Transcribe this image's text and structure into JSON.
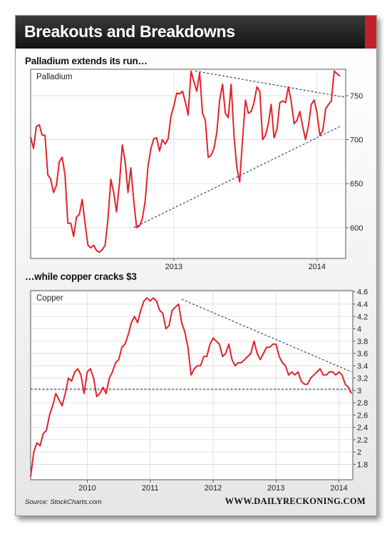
{
  "header": {
    "title": "Breakouts and Breakdowns"
  },
  "subtitles": {
    "top": "Palladium extends its run…",
    "bottom": "…while copper cracks $3"
  },
  "footer": {
    "source": "Source: StockCharts.com",
    "site": "WWW.DAILYRECKONING.COM"
  },
  "colors": {
    "series": "#e2232a",
    "trendline": "#1f3b73",
    "title_bar": "#1a1a1a",
    "accent": "#c2202a"
  },
  "chart_data": [
    {
      "type": "line",
      "title": "Palladium",
      "x_ticks": [
        {
          "label": "2013",
          "x": 2013.0
        },
        {
          "label": "2014",
          "x": 2014.0
        }
      ],
      "xlim": [
        2012.0,
        2014.2
      ],
      "y_ticks": [
        600,
        650,
        700,
        750
      ],
      "ylim": [
        565,
        780
      ],
      "grid": true,
      "axis_side": "right",
      "series": [
        {
          "x": [
            2012.0,
            2012.02,
            2012.04,
            2012.06,
            2012.08,
            2012.1,
            2012.12,
            2012.14,
            2012.16,
            2012.18,
            2012.2,
            2012.22,
            2012.24,
            2012.26,
            2012.28,
            2012.3,
            2012.32,
            2012.34,
            2012.36,
            2012.38,
            2012.4,
            2012.42,
            2012.44,
            2012.46,
            2012.48,
            2012.5,
            2012.52,
            2012.54,
            2012.56,
            2012.58,
            2012.6,
            2012.62,
            2012.64,
            2012.66,
            2012.68,
            2012.7,
            2012.72,
            2012.74,
            2012.76,
            2012.78,
            2012.8,
            2012.82,
            2012.84,
            2012.86,
            2012.88,
            2012.9,
            2012.92,
            2012.94,
            2012.96,
            2012.98,
            2013.0,
            2013.02,
            2013.04,
            2013.06,
            2013.08,
            2013.1,
            2013.12,
            2013.14,
            2013.16,
            2013.18,
            2013.2,
            2013.22,
            2013.24,
            2013.26,
            2013.28,
            2013.3,
            2013.32,
            2013.34,
            2013.36,
            2013.38,
            2013.4,
            2013.42,
            2013.44,
            2013.46,
            2013.48,
            2013.5,
            2013.52,
            2013.54,
            2013.56,
            2013.58,
            2013.6,
            2013.62,
            2013.64,
            2013.66,
            2013.68,
            2013.7,
            2013.72,
            2013.74,
            2013.76,
            2013.78,
            2013.8,
            2013.82,
            2013.84,
            2013.86,
            2013.88,
            2013.9,
            2013.92,
            2013.94,
            2013.96,
            2013.98,
            2014.0,
            2014.02,
            2014.04,
            2014.06,
            2014.08,
            2014.1,
            2014.12,
            2014.14,
            2014.16
          ],
          "values": [
            703,
            690,
            715,
            717,
            705,
            705,
            660,
            655,
            640,
            648,
            675,
            680,
            660,
            605,
            605,
            590,
            612,
            615,
            632,
            605,
            580,
            577,
            580,
            574,
            572,
            575,
            580,
            610,
            655,
            640,
            618,
            650,
            694,
            675,
            640,
            668,
            630,
            600,
            602,
            610,
            630,
            670,
            690,
            701,
            702,
            687,
            700,
            695,
            701,
            727,
            738,
            753,
            752,
            755,
            743,
            728,
            778,
            766,
            755,
            776,
            730,
            722,
            680,
            682,
            690,
            708,
            745,
            763,
            730,
            725,
            763,
            705,
            668,
            652,
            700,
            745,
            730,
            732,
            742,
            760,
            755,
            700,
            705,
            718,
            740,
            702,
            712,
            742,
            744,
            742,
            760,
            743,
            718,
            722,
            732,
            715,
            700,
            716,
            740,
            745,
            730,
            705,
            710,
            735,
            740,
            744,
            778,
            775,
            772
          ]
        }
      ],
      "trendlines": [
        {
          "x": [
            2013.15,
            2014.2
          ],
          "y": [
            778,
            748
          ]
        },
        {
          "x": [
            2012.72,
            2014.16
          ],
          "y": [
            600,
            715
          ]
        }
      ]
    },
    {
      "type": "line",
      "title": "Copper",
      "x_ticks": [
        {
          "label": "2010",
          "x": 2010.0
        },
        {
          "label": "2011",
          "x": 2011.0
        },
        {
          "label": "2012",
          "x": 2012.0
        },
        {
          "label": "2013",
          "x": 2013.0
        },
        {
          "label": "2014",
          "x": 2014.0
        }
      ],
      "xlim": [
        2009.1,
        2014.22
      ],
      "y_ticks": [
        1.8,
        2.0,
        2.2,
        2.4,
        2.6,
        2.8,
        3.0,
        3.2,
        3.4,
        3.6,
        3.8,
        4.0,
        4.2,
        4.4,
        4.6
      ],
      "ylim": [
        1.55,
        4.62
      ],
      "grid": true,
      "axis_side": "right",
      "series": [
        {
          "x": [
            2009.1,
            2009.15,
            2009.2,
            2009.25,
            2009.3,
            2009.35,
            2009.4,
            2009.45,
            2009.5,
            2009.55,
            2009.6,
            2009.65,
            2009.7,
            2009.75,
            2009.8,
            2009.85,
            2009.9,
            2009.95,
            2010.0,
            2010.05,
            2010.1,
            2010.15,
            2010.2,
            2010.25,
            2010.3,
            2010.35,
            2010.4,
            2010.45,
            2010.5,
            2010.55,
            2010.6,
            2010.65,
            2010.7,
            2010.75,
            2010.8,
            2010.85,
            2010.9,
            2010.95,
            2011.0,
            2011.05,
            2011.1,
            2011.15,
            2011.2,
            2011.25,
            2011.3,
            2011.35,
            2011.4,
            2011.45,
            2011.5,
            2011.55,
            2011.6,
            2011.65,
            2011.7,
            2011.75,
            2011.8,
            2011.85,
            2011.9,
            2011.95,
            2012.0,
            2012.05,
            2012.1,
            2012.15,
            2012.2,
            2012.25,
            2012.3,
            2012.35,
            2012.4,
            2012.45,
            2012.5,
            2012.55,
            2012.6,
            2012.65,
            2012.7,
            2012.75,
            2012.8,
            2012.85,
            2012.9,
            2012.95,
            2013.0,
            2013.05,
            2013.1,
            2013.15,
            2013.2,
            2013.25,
            2013.3,
            2013.35,
            2013.4,
            2013.45,
            2013.5,
            2013.55,
            2013.6,
            2013.65,
            2013.7,
            2013.75,
            2013.8,
            2013.85,
            2013.9,
            2013.95,
            2014.0,
            2014.05,
            2014.1,
            2014.15,
            2014.2
          ],
          "values": [
            1.6,
            2.0,
            2.15,
            2.1,
            2.3,
            2.35,
            2.6,
            2.75,
            2.95,
            2.85,
            2.75,
            2.95,
            3.2,
            3.15,
            3.3,
            3.35,
            3.25,
            2.95,
            3.3,
            3.35,
            3.2,
            2.9,
            2.95,
            3.05,
            2.95,
            3.2,
            3.3,
            3.45,
            3.5,
            3.7,
            3.75,
            3.9,
            4.1,
            4.2,
            4.1,
            4.3,
            4.45,
            4.5,
            4.45,
            4.5,
            4.45,
            4.3,
            4.25,
            4.0,
            4.05,
            4.3,
            4.35,
            4.4,
            4.1,
            3.95,
            3.7,
            3.25,
            3.35,
            3.4,
            3.4,
            3.55,
            3.55,
            3.75,
            3.85,
            3.8,
            3.75,
            3.55,
            3.6,
            3.75,
            3.5,
            3.4,
            3.45,
            3.45,
            3.5,
            3.55,
            3.6,
            3.8,
            3.6,
            3.5,
            3.6,
            3.7,
            3.7,
            3.75,
            3.75,
            3.55,
            3.45,
            3.4,
            3.25,
            3.3,
            3.25,
            3.3,
            3.15,
            3.1,
            3.1,
            3.2,
            3.25,
            3.3,
            3.35,
            3.25,
            3.25,
            3.3,
            3.3,
            3.25,
            3.3,
            3.25,
            3.1,
            3.05,
            2.95
          ]
        }
      ],
      "trendlines": [
        {
          "x": [
            2011.5,
            2014.2
          ],
          "y": [
            4.48,
            3.3
          ]
        },
        {
          "x": [
            2009.1,
            2014.22
          ],
          "y": [
            3.02,
            3.02
          ]
        }
      ]
    }
  ]
}
